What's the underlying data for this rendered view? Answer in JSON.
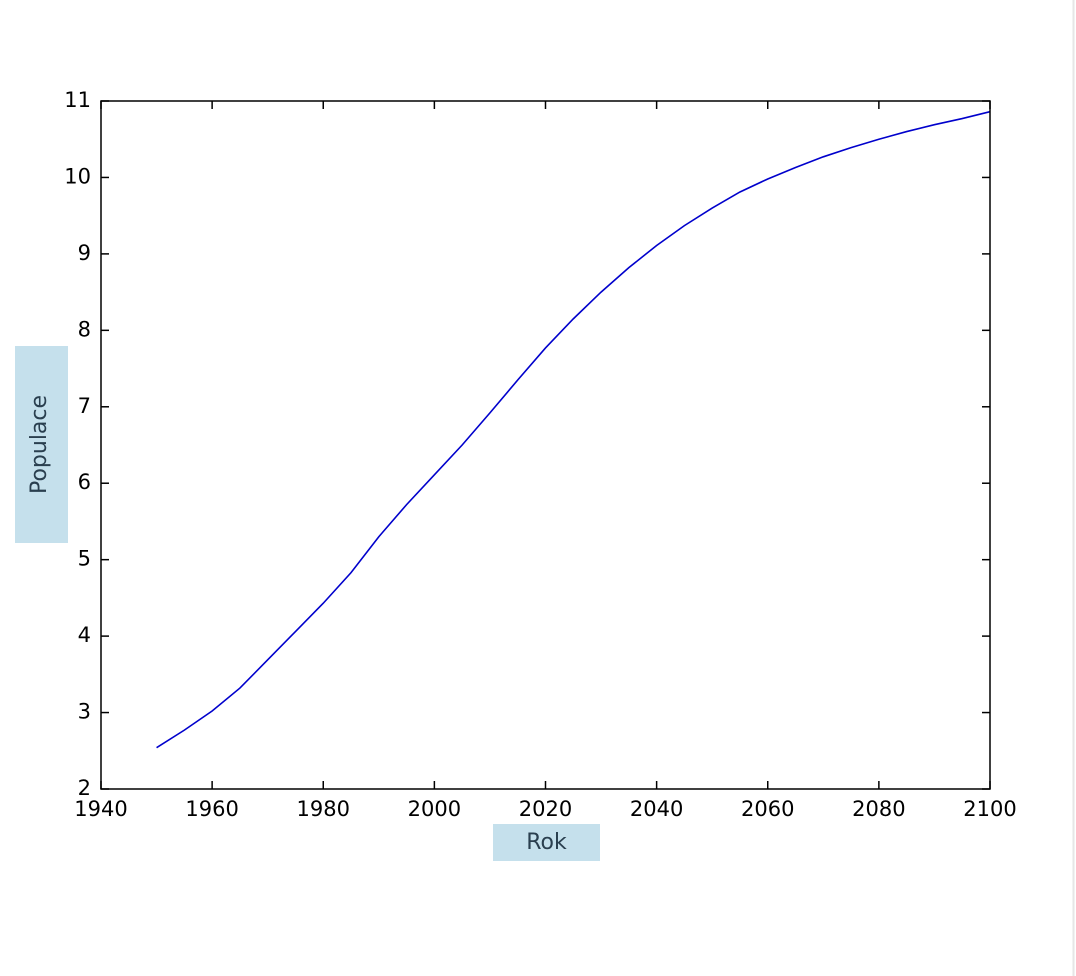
{
  "chart_data": {
    "type": "line",
    "xlabel": "Rok",
    "ylabel": "Populace",
    "x": [
      1950,
      1955,
      1960,
      1965,
      1970,
      1975,
      1980,
      1985,
      1990,
      1995,
      2000,
      2005,
      2010,
      2015,
      2020,
      2025,
      2030,
      2035,
      2040,
      2045,
      2050,
      2055,
      2060,
      2065,
      2070,
      2075,
      2080,
      2085,
      2090,
      2095,
      2100
    ],
    "series": [
      {
        "name": "Populace",
        "color": "#0000cc",
        "values": [
          2.54,
          2.77,
          3.02,
          3.32,
          3.69,
          4.06,
          4.43,
          4.83,
          5.3,
          5.72,
          6.11,
          6.5,
          6.92,
          7.35,
          7.77,
          8.15,
          8.5,
          8.82,
          9.11,
          9.37,
          9.6,
          9.81,
          9.98,
          10.13,
          10.27,
          10.39,
          10.5,
          10.6,
          10.69,
          10.77,
          10.86
        ]
      }
    ],
    "xlim": [
      1940,
      2100
    ],
    "ylim": [
      2,
      11
    ],
    "xticks": [
      1940,
      1960,
      1980,
      2000,
      2020,
      2040,
      2060,
      2080,
      2100
    ],
    "yticks": [
      2,
      3,
      4,
      5,
      6,
      7,
      8,
      9,
      10,
      11
    ],
    "grid": false
  }
}
